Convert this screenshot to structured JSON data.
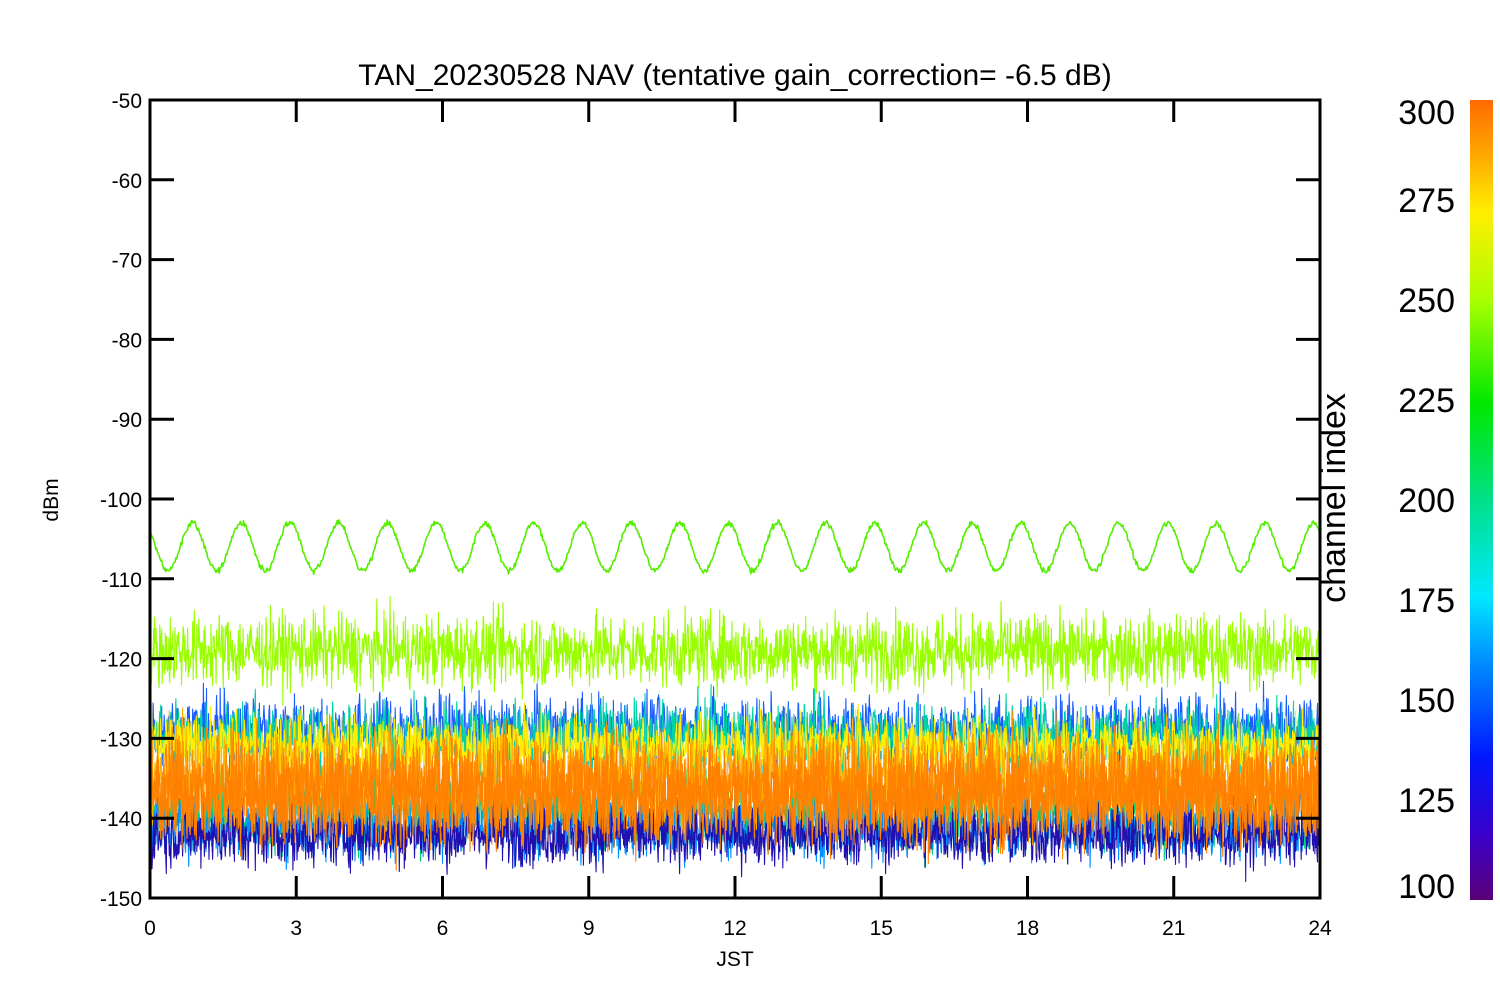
{
  "chart_data": {
    "type": "line",
    "title": "TAN_20230528 NAV (tentative gain_correction= -6.5 dB)",
    "xlabel": "JST",
    "ylabel": "dBm",
    "xlim": [
      0,
      24
    ],
    "ylim": [
      -150,
      -50
    ],
    "xticks": [
      "0",
      "3",
      "6",
      "9",
      "12",
      "15",
      "18",
      "21",
      "24"
    ],
    "yticks": [
      "-50",
      "-60",
      "-70",
      "-80",
      "-90",
      "-100",
      "-110",
      "-120",
      "-130",
      "-140",
      "-150"
    ],
    "colorbar": {
      "label": "channel index",
      "range": [
        100,
        300
      ],
      "ticks": [
        "300",
        "275",
        "250",
        "225",
        "200",
        "175",
        "150",
        "125",
        "100"
      ],
      "colormap": "rainbow"
    },
    "series": [
      {
        "channel_index": 240,
        "color": "#55ee00",
        "center": -106,
        "noise": 0.6,
        "oscillation": {
          "amplitude": 3.0,
          "period_hours": 1.0,
          "phase": 2.4
        }
      },
      {
        "channel_index": 255,
        "color": "#99ff00",
        "center": -119,
        "noise": 2.3
      },
      {
        "channel_index": 150,
        "color": "#1a5cff",
        "center": -129,
        "noise": 2.2
      },
      {
        "channel_index": 185,
        "color": "#00d2a8",
        "center": -130,
        "noise": 2.3
      },
      {
        "channel_index": 270,
        "color": "#ffee00",
        "center": -131,
        "noise": 2.0
      },
      {
        "channel_index": 200,
        "color": "#00d080",
        "center": -139,
        "noise": 2.4
      },
      {
        "channel_index": 160,
        "color": "#0090ff",
        "center": -141,
        "noise": 2.0
      },
      {
        "channel_index": 120,
        "color": "#2010b0",
        "center": -142,
        "noise": 2.0
      },
      {
        "channel_index": 280,
        "color": "#ffb000",
        "center": -135,
        "noise": 3.0
      },
      {
        "channel_index": 290,
        "color": "#ff8800",
        "center": -136,
        "noise": 3.4
      },
      {
        "channel_index": 291,
        "color": "#ff8000",
        "center": -137,
        "noise": 3.2
      }
    ]
  }
}
